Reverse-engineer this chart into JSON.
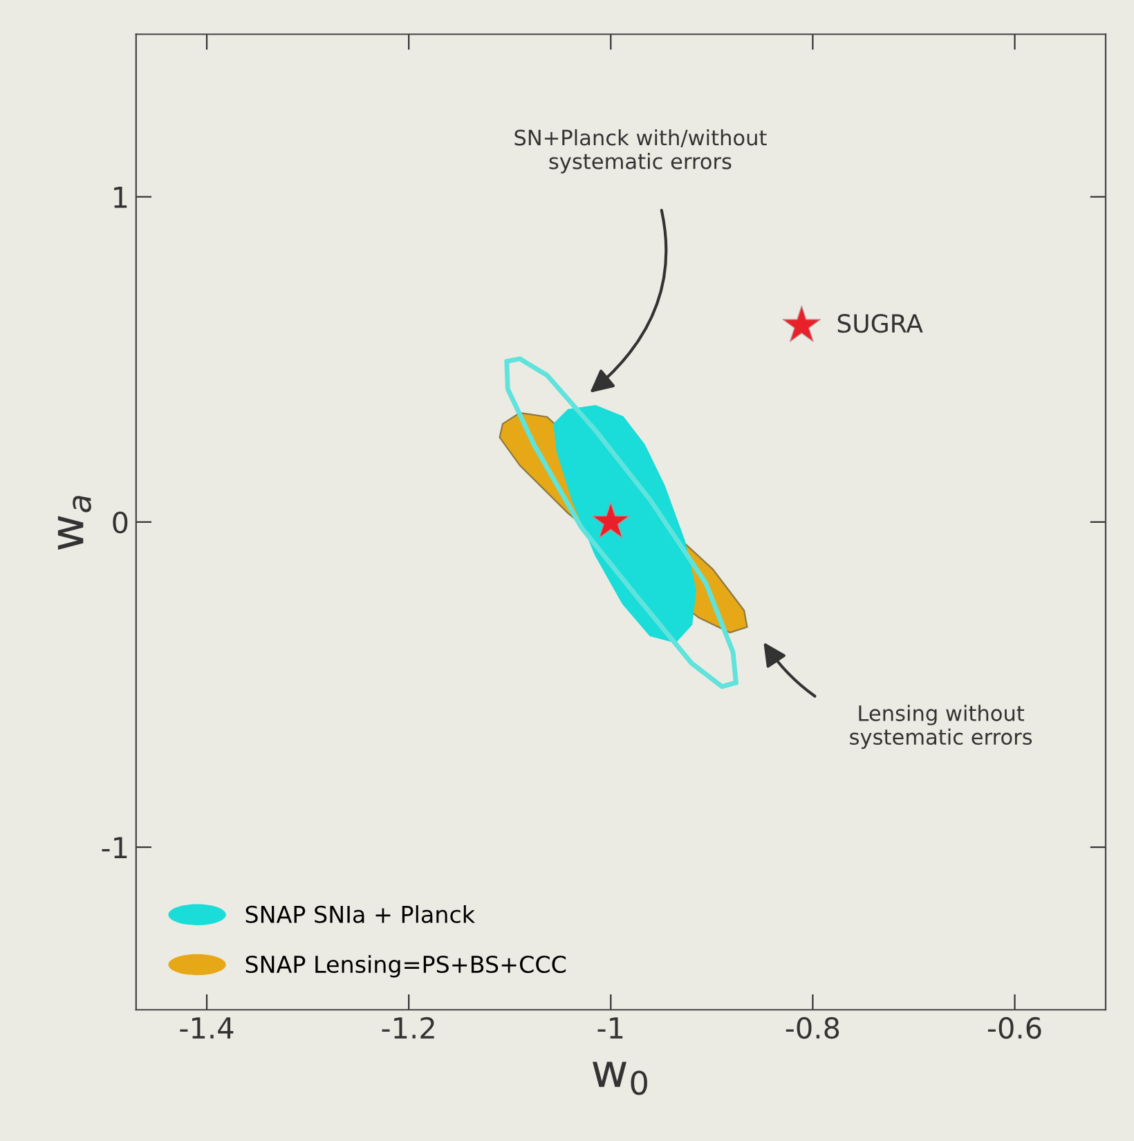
{
  "chart_data": {
    "type": "line",
    "xlabel": "w$_{0}$",
    "ylabel": "w$_{a}$",
    "xlim": [
      -1.47,
      -0.51
    ],
    "ylim": [
      -1.5,
      1.5
    ],
    "xticks": [
      -1.4,
      -1.2,
      {
        "value": -1.0,
        "label": "-1"
      },
      -0.8,
      -0.6
    ],
    "yticks": [
      -1,
      0,
      1
    ],
    "grid": false,
    "legend": "bottom left",
    "series": [
      {
        "type": "area",
        "name": "SNAP Lensing=PS+BS+CCC",
        "color": "#e6a817",
        "x": [
          -1.107,
          -1.09,
          -1.063,
          -0.899,
          -0.868,
          -0.865,
          -0.882,
          -0.913,
          -1.042,
          -1.09,
          -1.11
        ],
        "values": [
          0.302,
          0.336,
          0.323,
          -0.145,
          -0.272,
          -0.323,
          -0.34,
          -0.294,
          0.026,
          0.174,
          0.26
        ]
      },
      {
        "type": "area",
        "name": "SNAP SNIa + Planck",
        "color": "#1adcd8",
        "x": [
          -1.042,
          -1.015,
          -0.988,
          -0.967,
          -0.947,
          -0.927,
          -0.916,
          -0.92,
          -0.936,
          -0.961,
          -0.988,
          -1.015,
          -1.038,
          -1.053,
          -1.056
        ],
        "values": [
          0.345,
          0.357,
          0.323,
          0.238,
          0.111,
          -0.06,
          -0.209,
          -0.315,
          -0.37,
          -0.349,
          -0.251,
          -0.102,
          0.068,
          0.217,
          0.302
        ]
      },
      {
        "color": "#5fe3dc",
        "x": [
          -1.103,
          -1.09,
          -1.063,
          -1.015,
          -0.961,
          -0.906,
          -0.879,
          -0.876
        ],
        "values": [
          0.494,
          0.502,
          0.451,
          0.281,
          0.068,
          -0.187,
          -0.4,
          -0.494
        ]
      },
      {
        "color": "#5fe3dc",
        "x": [
          -0.876,
          -0.89,
          -0.92,
          -0.974,
          -1.029,
          -1.076,
          -1.102,
          -1.103
        ],
        "values": [
          -0.494,
          -0.506,
          -0.434,
          -0.23,
          -0.017,
          0.238,
          0.409,
          0.494
        ]
      },
      {
        "type": "scatter",
        "marker": "star",
        "color": "#e8202a",
        "x": [
          -1.0,
          -0.811
        ],
        "values": [
          0.0,
          0.604
        ]
      }
    ],
    "annotations": [
      "SN+Planck with/without\nsystematic errors",
      "Lensing without\nsystematic errors",
      {
        "text": "SUGRA",
        "x": -0.811,
        "y": 0.604
      }
    ]
  }
}
